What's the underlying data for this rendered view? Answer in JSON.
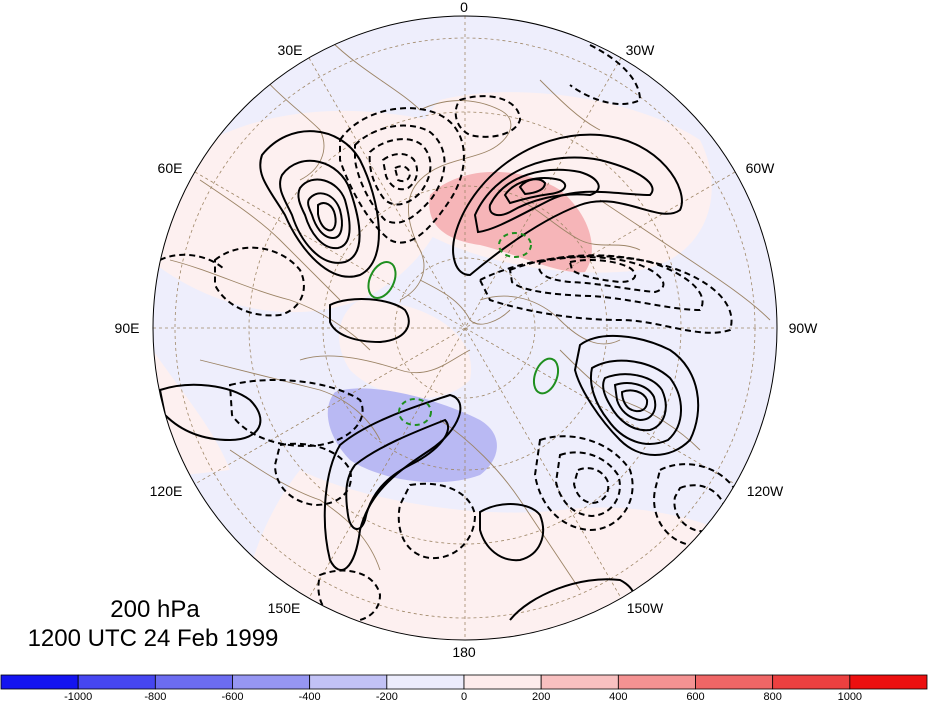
{
  "map": {
    "projection": "polar stereographic",
    "level_label": "200 hPa",
    "time_label": "1200 UTC 24 Feb 1999",
    "longitude_labels": [
      "0",
      "30W",
      "60W",
      "90W",
      "120W",
      "150W",
      "180",
      "150E",
      "120E",
      "90E",
      "60E",
      "30E"
    ],
    "contour_styles": {
      "positive": "solid black",
      "negative": "dashed black",
      "highlight": "green"
    }
  },
  "colorbar": {
    "tick_labels": [
      "-1000",
      "-800",
      "-600",
      "-400",
      "-200",
      "0",
      "200",
      "400",
      "600",
      "800",
      "1000"
    ],
    "colors": [
      "#1414f0",
      "#4646f0",
      "#6c6cf0",
      "#9696f2",
      "#c2c2f6",
      "#ececfc",
      "#fdecec",
      "#f8c0c0",
      "#f49292",
      "#ef6666",
      "#ec4040",
      "#ec1010"
    ]
  },
  "colors": {
    "coast": "#9c8466",
    "grid": "#a08868",
    "positive_shade": "#f6b5b8",
    "negative_shade": "#b9b9f3",
    "light_positive": "#fdf0f0",
    "light_negative": "#eeeefc"
  }
}
